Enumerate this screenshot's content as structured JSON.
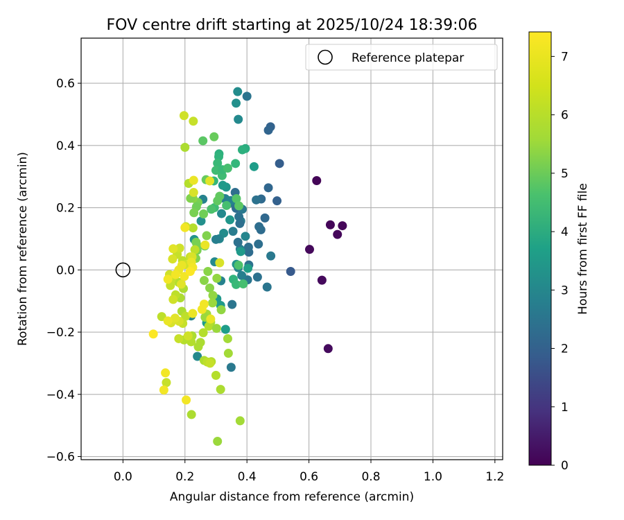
{
  "chart_data": {
    "type": "scatter",
    "title": "FOV centre drift starting at 2025/10/24 18:39:06",
    "xlabel": "Angular distance from reference (arcmin)",
    "ylabel": "Rotation from reference (arcmin)",
    "xlim": [
      -0.135,
      1.225
    ],
    "ylim": [
      -0.61,
      0.745
    ],
    "xticks": [
      0.0,
      0.2,
      0.4,
      0.6,
      0.8,
      1.0,
      1.2
    ],
    "yticks": [
      -0.6,
      -0.4,
      -0.2,
      0.0,
      0.2,
      0.4,
      0.6
    ],
    "grid": true,
    "legend": {
      "position": "top-right",
      "entries": [
        "Reference platepar"
      ]
    },
    "reference_point": {
      "x": 0.0,
      "y": 0.0,
      "label": "Reference platepar"
    },
    "colorbar": {
      "label": "Hours from first FF file",
      "range": [
        0,
        7.42
      ],
      "ticks": [
        0,
        1,
        2,
        3,
        4,
        5,
        6,
        7
      ],
      "colormap": "viridis"
    },
    "points": [
      [
        0.625,
        0.287,
        0.08
      ],
      [
        0.669,
        0.145,
        0.1
      ],
      [
        0.708,
        0.142,
        0.12
      ],
      [
        0.692,
        0.114,
        0.13
      ],
      [
        0.602,
        0.066,
        0.16
      ],
      [
        0.642,
        -0.033,
        0.18
      ],
      [
        0.662,
        -0.253,
        0.2
      ],
      [
        0.541,
        -0.005,
        2.1
      ],
      [
        0.505,
        0.342,
        2.2
      ],
      [
        0.497,
        0.222,
        2.3
      ],
      [
        0.476,
        0.46,
        2.35
      ],
      [
        0.469,
        0.449,
        2.4
      ],
      [
        0.469,
        0.264,
        2.45
      ],
      [
        0.458,
        0.167,
        2.5
      ],
      [
        0.446,
        0.228,
        2.55
      ],
      [
        0.445,
        0.129,
        2.6
      ],
      [
        0.439,
        0.139,
        2.65
      ],
      [
        0.437,
        0.083,
        2.7
      ],
      [
        0.434,
        -0.023,
        2.75
      ],
      [
        0.43,
        0.225,
        2.8
      ],
      [
        0.465,
        -0.055,
        2.9
      ],
      [
        0.477,
        0.045,
        3.0
      ],
      [
        0.4,
        0.558,
        2.85
      ],
      [
        0.406,
        0.057,
        2.6
      ],
      [
        0.405,
        0.073,
        2.7
      ],
      [
        0.406,
        0.016,
        2.8
      ],
      [
        0.402,
        -0.032,
        2.9
      ],
      [
        0.385,
        0.195,
        3.0
      ],
      [
        0.38,
        0.157,
        3.1
      ],
      [
        0.378,
        0.067,
        3.2
      ],
      [
        0.372,
        0.007,
        3.3
      ],
      [
        0.371,
        0.089,
        2.75
      ],
      [
        0.377,
        0.149,
        2.7
      ],
      [
        0.374,
        0.171,
        2.75
      ],
      [
        0.362,
        0.249,
        2.65
      ],
      [
        0.365,
        0.198,
        2.6
      ],
      [
        0.35,
        0.216,
        2.85
      ],
      [
        0.355,
        0.124,
        3.1
      ],
      [
        0.352,
        -0.111,
        2.9
      ],
      [
        0.349,
        -0.313,
        3.0
      ],
      [
        0.383,
        -0.018,
        3.2
      ],
      [
        0.395,
        0.108,
        3.4
      ],
      [
        0.37,
        0.573,
        3.6
      ],
      [
        0.372,
        0.484,
        3.5
      ],
      [
        0.365,
        0.536,
        3.7
      ],
      [
        0.348,
        0.223,
        3.3
      ],
      [
        0.33,
        0.229,
        3.4
      ],
      [
        0.32,
        0.231,
        3.2
      ],
      [
        0.318,
        0.181,
        3.5
      ],
      [
        0.325,
        0.118,
        3.6
      ],
      [
        0.311,
        0.1,
        3.4
      ],
      [
        0.3,
        0.098,
        3.2
      ],
      [
        0.316,
        -0.035,
        3.3
      ],
      [
        0.296,
        0.026,
        3.5
      ],
      [
        0.258,
        0.227,
        3.3
      ],
      [
        0.252,
        0.157,
        3.7
      ],
      [
        0.23,
        0.098,
        3.8
      ],
      [
        0.24,
        -0.278,
        3.5
      ],
      [
        0.22,
        -0.148,
        3.4
      ],
      [
        0.366,
        0.018,
        3.8
      ],
      [
        0.38,
        0.059,
        4.0
      ],
      [
        0.423,
        0.332,
        4.1
      ],
      [
        0.345,
        0.161,
        3.9
      ],
      [
        0.333,
        0.266,
        3.9
      ],
      [
        0.322,
        0.272,
        4.0
      ],
      [
        0.331,
        -0.191,
        4.1
      ],
      [
        0.303,
        -0.093,
        3.95
      ],
      [
        0.315,
        -0.114,
        4.0
      ],
      [
        0.27,
        -0.17,
        4.1
      ],
      [
        0.403,
        0.005,
        4.2
      ],
      [
        0.395,
        0.39,
        4.6
      ],
      [
        0.385,
        0.386,
        4.7
      ],
      [
        0.363,
        0.342,
        4.9
      ],
      [
        0.31,
        0.373,
        4.7
      ],
      [
        0.309,
        0.364,
        4.8
      ],
      [
        0.305,
        0.343,
        5.0
      ],
      [
        0.3,
        0.32,
        5.1
      ],
      [
        0.32,
        0.303,
        5.1
      ],
      [
        0.321,
        0.322,
        5.0
      ],
      [
        0.338,
        0.327,
        5.2
      ],
      [
        0.293,
        0.286,
        4.9
      ],
      [
        0.295,
        0.2,
        5.1
      ],
      [
        0.285,
        0.195,
        5.3
      ],
      [
        0.334,
        0.207,
        5.2
      ],
      [
        0.356,
        -0.03,
        4.8
      ],
      [
        0.365,
        -0.047,
        5.0
      ],
      [
        0.373,
        0.015,
        5.3
      ],
      [
        0.366,
        0.229,
        5.4
      ],
      [
        0.374,
        0.206,
        5.5
      ],
      [
        0.388,
        -0.045,
        5.2
      ],
      [
        0.258,
        0.415,
        5.5
      ],
      [
        0.294,
        0.428,
        5.7
      ],
      [
        0.312,
        0.237,
        5.6
      ],
      [
        0.305,
        0.222,
        5.6
      ],
      [
        0.268,
        0.29,
        5.7
      ],
      [
        0.26,
        0.18,
        5.8
      ],
      [
        0.264,
        0.077,
        5.7
      ],
      [
        0.239,
        0.079,
        5.9
      ],
      [
        0.242,
        0.217,
        5.9
      ],
      [
        0.237,
        0.203,
        5.8
      ],
      [
        0.226,
        0.23,
        6.1
      ],
      [
        0.218,
        0.23,
        6.0
      ],
      [
        0.229,
        0.184,
        5.9
      ],
      [
        0.236,
        0.089,
        5.9
      ],
      [
        0.239,
        0.063,
        5.9
      ],
      [
        0.235,
        0.037,
        6.0
      ],
      [
        0.27,
        0.11,
        6.0
      ],
      [
        0.274,
        -0.005,
        6.1
      ],
      [
        0.262,
        -0.034,
        6.1
      ],
      [
        0.28,
        -0.058,
        6.1
      ],
      [
        0.29,
        -0.082,
        6.2
      ],
      [
        0.303,
        -0.027,
        6.2
      ],
      [
        0.317,
        -0.128,
        6.2
      ],
      [
        0.289,
        -0.106,
        6.3
      ],
      [
        0.27,
        -0.142,
        6.4
      ],
      [
        0.265,
        -0.152,
        6.3
      ],
      [
        0.283,
        -0.168,
        6.5
      ],
      [
        0.277,
        -0.181,
        6.6
      ],
      [
        0.259,
        -0.202,
        6.6
      ],
      [
        0.25,
        -0.233,
        6.5
      ],
      [
        0.243,
        -0.247,
        6.5
      ],
      [
        0.223,
        -0.212,
        6.5
      ],
      [
        0.22,
        -0.231,
        6.6
      ],
      [
        0.197,
        -0.225,
        6.6
      ],
      [
        0.18,
        -0.221,
        6.8
      ],
      [
        0.262,
        -0.291,
        6.5
      ],
      [
        0.272,
        -0.296,
        6.7
      ],
      [
        0.285,
        -0.295,
        6.6
      ],
      [
        0.281,
        -0.3,
        6.8
      ],
      [
        0.3,
        -0.339,
        6.6
      ],
      [
        0.315,
        -0.384,
        6.5
      ],
      [
        0.338,
        -0.221,
        6.4
      ],
      [
        0.34,
        -0.268,
        6.4
      ],
      [
        0.302,
        -0.188,
        6.3
      ],
      [
        0.305,
        -0.551,
        6.3
      ],
      [
        0.378,
        -0.485,
        6.4
      ],
      [
        0.221,
        -0.465,
        6.5
      ],
      [
        0.2,
        0.394,
        6.5
      ],
      [
        0.227,
        0.478,
        6.8
      ],
      [
        0.197,
        0.496,
        6.9
      ],
      [
        0.212,
        0.278,
        6.6
      ],
      [
        0.226,
        0.135,
        6.6
      ],
      [
        0.203,
        0.139,
        6.8
      ],
      [
        0.232,
        0.065,
        6.7
      ],
      [
        0.217,
        0.042,
        6.8
      ],
      [
        0.192,
        0.03,
        6.7
      ],
      [
        0.202,
        0.017,
        6.9
      ],
      [
        0.195,
        -0.06,
        6.5
      ],
      [
        0.18,
        -0.04,
        6.6
      ],
      [
        0.185,
        -0.09,
        6.5
      ],
      [
        0.19,
        -0.133,
        6.5
      ],
      [
        0.202,
        -0.149,
        6.7
      ],
      [
        0.193,
        -0.172,
        6.8
      ],
      [
        0.181,
        -0.165,
        7.0
      ],
      [
        0.21,
        -0.212,
        6.9
      ],
      [
        0.17,
        -0.08,
        6.7
      ],
      [
        0.162,
        -0.095,
        6.9
      ],
      [
        0.157,
        -0.03,
        6.8
      ],
      [
        0.15,
        -0.015,
        6.9
      ],
      [
        0.153,
        -0.05,
        6.8
      ],
      [
        0.125,
        -0.15,
        6.7
      ],
      [
        0.14,
        -0.362,
        6.8
      ],
      [
        0.155,
        -0.17,
        7.0
      ],
      [
        0.175,
        0.05,
        6.8
      ],
      [
        0.183,
        0.07,
        6.9
      ],
      [
        0.162,
        0.068,
        7.1
      ],
      [
        0.16,
        0.035,
        7.0
      ],
      [
        0.19,
        0.015,
        7.2
      ],
      [
        0.18,
        0.0,
        7.2
      ],
      [
        0.17,
        -0.015,
        7.3
      ],
      [
        0.198,
        -0.021,
        7.3
      ],
      [
        0.188,
        -0.046,
        7.1
      ],
      [
        0.168,
        -0.155,
        7.1
      ],
      [
        0.145,
        -0.164,
        7.2
      ],
      [
        0.145,
        -0.03,
        7.3
      ],
      [
        0.223,
        0.042,
        7.0
      ],
      [
        0.225,
        -0.14,
        7.2
      ],
      [
        0.2,
        0.136,
        7.3
      ],
      [
        0.221,
        0.025,
        7.2
      ],
      [
        0.228,
        0.249,
        7.0
      ],
      [
        0.228,
        0.288,
        7.2
      ],
      [
        0.28,
        0.286,
        7.1
      ],
      [
        0.262,
        -0.11,
        7.3
      ],
      [
        0.255,
        -0.127,
        7.3
      ],
      [
        0.283,
        -0.158,
        7.2
      ],
      [
        0.312,
        0.023,
        7.0
      ],
      [
        0.265,
        0.08,
        7.2
      ],
      [
        0.225,
        0.008,
        7.3
      ],
      [
        0.217,
        -0.005,
        7.4
      ],
      [
        0.132,
        -0.386,
        7.3
      ],
      [
        0.137,
        -0.331,
        7.3
      ],
      [
        0.098,
        -0.206,
        7.4
      ],
      [
        0.204,
        -0.418,
        7.3
      ]
    ]
  }
}
